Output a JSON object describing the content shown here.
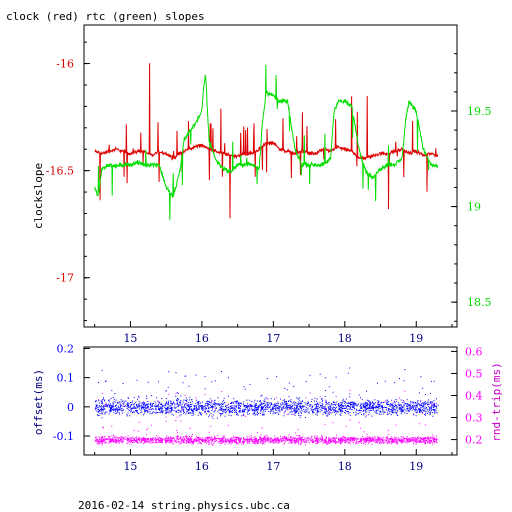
{
  "title": "clock (red) rtc (green) slopes",
  "footer": "2016-02-14 string.physics.ubc.ca",
  "colors": {
    "clock": "#dd0000",
    "rtc": "#00dd00",
    "offset": "#0000ff",
    "rndtrip": "#ff00ff",
    "axis": "#000000"
  },
  "chart_data": [
    {
      "type": "line",
      "title": "clock (red) rtc (green) slopes",
      "ylabel": "clockslope",
      "xlim": [
        14.35,
        19.57
      ],
      "ylim": [
        -17.23,
        -15.82
      ],
      "y2lim": [
        18.37,
        19.95
      ],
      "x_ticks": [
        "15",
        "16",
        "17",
        "18",
        "19"
      ],
      "y_ticks": [
        "-16",
        "-16.5",
        "-17"
      ],
      "y2_ticks": [
        "19.5",
        "19",
        "18.5"
      ],
      "series": [
        {
          "name": "clock",
          "axis": "left",
          "x": [
            14.5,
            14.6,
            14.7,
            14.8,
            14.9,
            15.0,
            15.1,
            15.2,
            15.3,
            15.4,
            15.5,
            15.6,
            15.7,
            15.8,
            15.9,
            16.0,
            16.1,
            16.2,
            16.3,
            16.4,
            16.5,
            16.6,
            16.7,
            16.8,
            16.9,
            17.0,
            17.1,
            17.2,
            17.3,
            17.4,
            17.5,
            17.6,
            17.7,
            17.8,
            17.9,
            18.0,
            18.1,
            18.2,
            18.3,
            18.4,
            18.5,
            18.6,
            18.7,
            18.8,
            18.9,
            19.0,
            19.1,
            19.2,
            19.3
          ],
          "y": [
            -16.41,
            -16.42,
            -16.41,
            -16.4,
            -16.41,
            -16.42,
            -16.41,
            -16.41,
            -16.43,
            -16.41,
            -16.42,
            -16.44,
            -16.42,
            -16.4,
            -16.39,
            -16.38,
            -16.4,
            -16.41,
            -16.42,
            -16.43,
            -16.43,
            -16.42,
            -16.42,
            -16.4,
            -16.37,
            -16.37,
            -16.4,
            -16.41,
            -16.42,
            -16.41,
            -16.42,
            -16.42,
            -16.4,
            -16.41,
            -16.39,
            -16.4,
            -16.41,
            -16.44,
            -16.44,
            -16.43,
            -16.42,
            -16.42,
            -16.41,
            -16.4,
            -16.42,
            -16.41,
            -16.43,
            -16.42,
            -16.43
          ]
        },
        {
          "name": "rtc",
          "axis": "right",
          "x": [
            14.5,
            14.55,
            14.6,
            14.7,
            14.8,
            14.9,
            15.0,
            15.1,
            15.2,
            15.3,
            15.4,
            15.5,
            15.6,
            15.7,
            15.75,
            15.8,
            15.9,
            16.0,
            16.02,
            16.05,
            16.1,
            16.2,
            16.3,
            16.4,
            16.5,
            16.6,
            16.7,
            16.8,
            16.85,
            16.9,
            17.0,
            17.1,
            17.2,
            17.3,
            17.4,
            17.5,
            17.6,
            17.7,
            17.8,
            17.85,
            17.9,
            18.0,
            18.1,
            18.2,
            18.3,
            18.4,
            18.5,
            18.6,
            18.7,
            18.8,
            18.85,
            18.9,
            19.0,
            19.1,
            19.2,
            19.3
          ],
          "y": [
            19.1,
            19.05,
            19.2,
            19.22,
            19.21,
            19.22,
            19.22,
            19.23,
            19.22,
            19.22,
            19.22,
            19.1,
            19.05,
            19.2,
            19.35,
            19.38,
            19.43,
            19.5,
            19.6,
            19.7,
            19.35,
            19.24,
            19.2,
            19.18,
            19.22,
            19.22,
            19.22,
            19.2,
            19.45,
            19.6,
            19.58,
            19.55,
            19.55,
            19.3,
            19.22,
            19.22,
            19.22,
            19.22,
            19.25,
            19.5,
            19.55,
            19.55,
            19.52,
            19.3,
            19.18,
            19.15,
            19.2,
            19.22,
            19.22,
            19.25,
            19.45,
            19.55,
            19.5,
            19.3,
            19.22,
            19.21
          ]
        }
      ]
    },
    {
      "type": "scatter",
      "ylabel": "offset(ms)",
      "y2label": "rnd-trip(ms)",
      "xlim": [
        14.35,
        19.57
      ],
      "ylim": [
        -0.165,
        0.205
      ],
      "y2lim": [
        0.13,
        0.62
      ],
      "x_ticks": [
        "15",
        "16",
        "17",
        "18",
        "19"
      ],
      "y_ticks": [
        "0.2",
        "0.1",
        "0",
        "-0.1"
      ],
      "y2_ticks": [
        "0.6",
        "0.5",
        "0.4",
        "0.3",
        "0.2"
      ],
      "series": [
        {
          "name": "offset",
          "axis": "left",
          "x_range": [
            14.5,
            19.3
          ],
          "center": 0.0,
          "spread": 0.04
        },
        {
          "name": "rnd-trip",
          "axis": "right",
          "x_range": [
            14.5,
            19.3
          ],
          "center": 0.2,
          "spread": 0.025
        }
      ]
    }
  ]
}
